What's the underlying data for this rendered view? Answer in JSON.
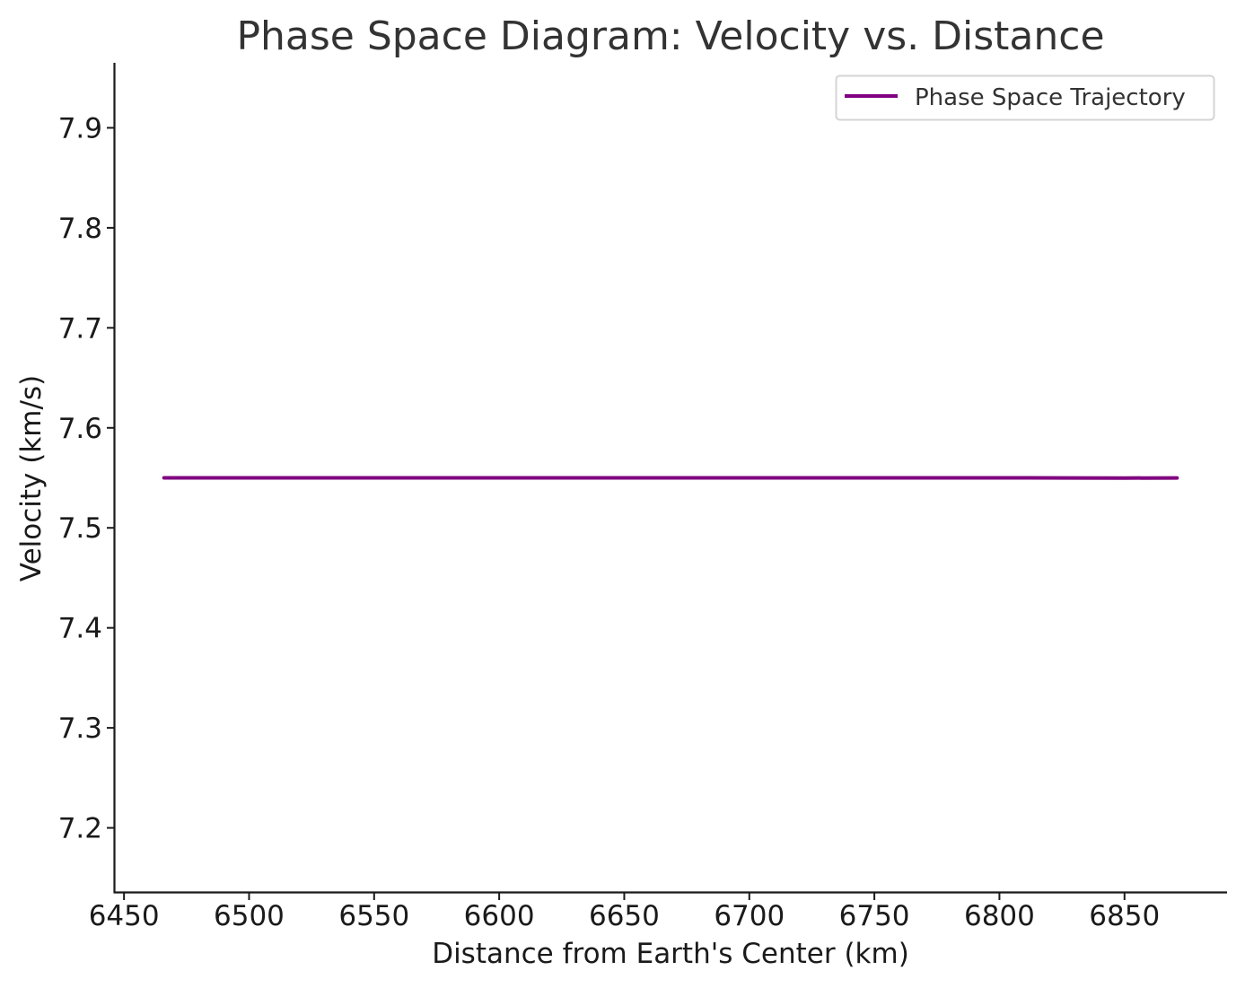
{
  "chart_data": {
    "type": "line",
    "title": "Phase Space Diagram: Velocity vs. Distance",
    "xlabel": "Distance from Earth's Center (km)",
    "ylabel": "Velocity (km/s)",
    "xlim": [
      6446,
      6891
    ],
    "ylim": [
      7.135,
      7.965
    ],
    "x_ticks": [
      6450,
      6500,
      6550,
      6600,
      6650,
      6700,
      6750,
      6800,
      6850
    ],
    "x_tick_labels": [
      "6450",
      "6500",
      "6550",
      "6600",
      "6650",
      "6700",
      "6750",
      "6800",
      "6850"
    ],
    "y_ticks": [
      7.2,
      7.3,
      7.4,
      7.5,
      7.6,
      7.7,
      7.8,
      7.9
    ],
    "y_tick_labels": [
      "7.2",
      "7.3",
      "7.4",
      "7.5",
      "7.6",
      "7.7",
      "7.8",
      "7.9"
    ],
    "grid": false,
    "legend_position": "top-right",
    "series": [
      {
        "name": "Phase Space Trajectory",
        "color": "#800080",
        "x": [
          6466,
          6500,
          6550,
          6600,
          6650,
          6700,
          6750,
          6800,
          6828,
          6850,
          6871
        ],
        "y": [
          7.55,
          7.55,
          7.55,
          7.55,
          7.55,
          7.55,
          7.55,
          7.55,
          7.5499,
          7.5498,
          7.5499
        ]
      }
    ]
  }
}
